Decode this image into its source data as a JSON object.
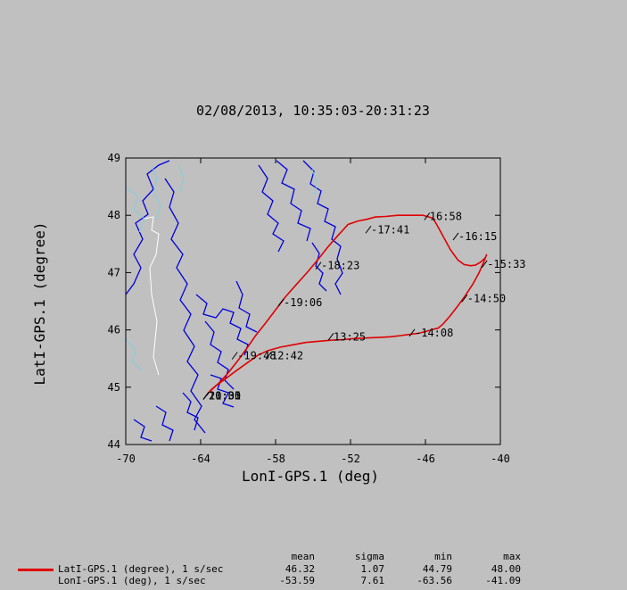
{
  "chart_data": {
    "type": "line",
    "title": "02/08/2013, 10:35:03-20:31:23",
    "xlabel": "LonI-GPS.1 (deg)",
    "ylabel": "LatI-GPS.1 (degree)",
    "xlim": [
      -70,
      -40
    ],
    "ylim": [
      44,
      49
    ],
    "xticks": [
      "-70",
      "-64",
      "-58",
      "-52",
      "-46",
      "-40"
    ],
    "yticks": [
      "44",
      "45",
      "46",
      "47",
      "48",
      "49"
    ],
    "grid": false,
    "series": [
      {
        "name": "LatI-GPS.1 (degree), 1 s/sec",
        "color": "#e00000",
        "x": [
          -63.56,
          -63.2,
          -62.5,
          -61.8,
          -61.0,
          -60.3,
          -59.6,
          -58.8,
          -58.0,
          -57.2,
          -56.3,
          -55.4,
          -54.6,
          -53.8,
          -53.0,
          -52.2,
          -51.4,
          -50.7,
          -50.0,
          -49.2,
          -48.2,
          -47.2,
          -46.2,
          -45.4,
          -45.0,
          -44.5,
          -44.0,
          -43.4,
          -42.9,
          -42.4,
          -42.0,
          -41.6,
          -41.2,
          -41.09,
          -41.3,
          -41.7,
          -42.2,
          -42.8,
          -43.4,
          -44.0,
          -44.6,
          -45.0,
          -45.4,
          -46.0,
          -46.6,
          -47.3,
          -48.0,
          -48.8,
          -49.6,
          -50.6,
          -51.6,
          -52.6,
          -53.6,
          -54.6,
          -55.6,
          -56.6,
          -57.6,
          -58.6,
          -59.4,
          -60.3,
          -61.2,
          -62.0,
          -62.8,
          -63.3,
          -63.56
        ],
        "y": [
          44.85,
          44.95,
          45.08,
          45.25,
          45.47,
          45.68,
          45.9,
          46.12,
          46.35,
          46.58,
          46.8,
          47.02,
          47.23,
          47.45,
          47.65,
          47.84,
          47.9,
          47.93,
          47.97,
          47.98,
          48.0,
          48.0,
          48.0,
          47.95,
          47.8,
          47.6,
          47.4,
          47.22,
          47.14,
          47.12,
          47.13,
          47.18,
          47.26,
          47.32,
          47.2,
          47.0,
          46.8,
          46.6,
          46.42,
          46.25,
          46.1,
          46.03,
          46.01,
          45.97,
          45.94,
          45.92,
          45.9,
          45.88,
          45.87,
          45.86,
          45.85,
          45.83,
          45.82,
          45.8,
          45.78,
          45.74,
          45.7,
          45.64,
          45.56,
          45.42,
          45.28,
          45.15,
          45.02,
          44.92,
          44.85
        ]
      }
    ],
    "time_labels": [
      {
        "text": "16:58",
        "x": -45.8,
        "y": 47.98
      },
      {
        "text": "-16:15",
        "x": -43.5,
        "y": 47.63
      },
      {
        "text": "-17:41",
        "x": -50.5,
        "y": 47.75
      },
      {
        "text": "-18:23",
        "x": -54.5,
        "y": 47.12
      },
      {
        "text": "-15:33",
        "x": -41.2,
        "y": 47.15
      },
      {
        "text": "-14:50",
        "x": -42.8,
        "y": 46.55
      },
      {
        "text": "-19:06",
        "x": -57.5,
        "y": 46.48
      },
      {
        "text": "-14:08",
        "x": -47.0,
        "y": 45.95
      },
      {
        "text": "13:25",
        "x": -53.5,
        "y": 45.88
      },
      {
        "text": "-19:48",
        "x": -61.2,
        "y": 45.55
      },
      {
        "text": "12:42",
        "x": -58.5,
        "y": 45.55
      },
      {
        "text": "21:00",
        "x": -63.5,
        "y": 44.85
      },
      {
        "text": "10:35",
        "x": -63.5,
        "y": 44.85
      },
      {
        "text": "20:31",
        "x": -63.5,
        "y": 44.85
      }
    ]
  },
  "legend": {
    "headers": [
      "mean",
      "sigma",
      "min",
      "max"
    ],
    "rows": [
      {
        "name": "LatI-GPS.1 (degree), 1 s/sec",
        "mean": "46.32",
        "sigma": "1.07",
        "min": "44.79",
        "max": "48.00",
        "swatch": true
      },
      {
        "name": "LonI-GPS.1 (deg), 1 s/sec",
        "mean": "-53.59",
        "sigma": "7.61",
        "min": "-63.56",
        "max": "-41.09",
        "swatch": false
      }
    ]
  }
}
